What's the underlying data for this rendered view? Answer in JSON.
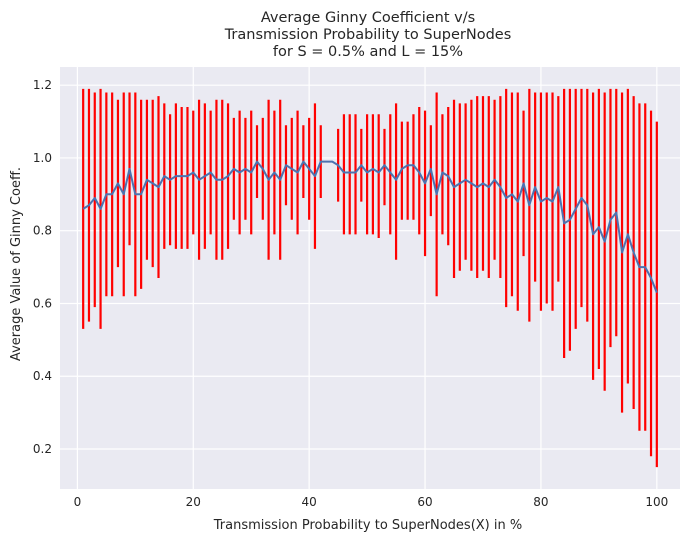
{
  "chart_data": {
    "type": "line",
    "title_lines": [
      "Average Ginny Coefficient v/s",
      "Transmission Probability to SuperNodes",
      "for S = 0.5% and L = 15%"
    ],
    "xlabel": "Transmission Probability to SuperNodes(X) in %",
    "ylabel": "Average Value of Ginny Coeff.",
    "xlim": [
      -3,
      104
    ],
    "ylim": [
      0.09,
      1.25
    ],
    "x_ticks": [
      0,
      20,
      40,
      60,
      80,
      100
    ],
    "x_tick_labels": [
      "0",
      "20",
      "40",
      "60",
      "80",
      "100"
    ],
    "y_ticks": [
      0.2,
      0.4,
      0.6,
      0.8,
      1.0,
      1.2
    ],
    "y_tick_labels": [
      "0.2",
      "0.4",
      "0.6",
      "0.8",
      "1.0",
      "1.2"
    ],
    "grid": true,
    "colors": {
      "background": "#EAEAF2",
      "grid": "#FFFFFF",
      "line": "#4C72B0",
      "error_bars": "#FF0000"
    },
    "x": [
      1,
      2,
      3,
      4,
      5,
      6,
      7,
      8,
      9,
      10,
      11,
      12,
      13,
      14,
      15,
      16,
      17,
      18,
      19,
      20,
      21,
      22,
      23,
      24,
      25,
      26,
      27,
      28,
      29,
      30,
      31,
      32,
      33,
      34,
      35,
      36,
      37,
      38,
      39,
      40,
      41,
      42,
      43,
      44,
      45,
      46,
      47,
      48,
      49,
      50,
      51,
      52,
      53,
      54,
      55,
      56,
      57,
      58,
      59,
      60,
      61,
      62,
      63,
      64,
      65,
      66,
      67,
      68,
      69,
      70,
      71,
      72,
      73,
      74,
      75,
      76,
      77,
      78,
      79,
      80,
      81,
      82,
      83,
      84,
      85,
      86,
      87,
      88,
      89,
      90,
      91,
      92,
      93,
      94,
      95,
      96,
      97,
      98,
      99,
      100
    ],
    "mean": [
      0.86,
      0.87,
      0.89,
      0.86,
      0.9,
      0.9,
      0.93,
      0.9,
      0.97,
      0.9,
      0.9,
      0.94,
      0.93,
      0.92,
      0.95,
      0.94,
      0.95,
      0.95,
      0.95,
      0.96,
      0.94,
      0.95,
      0.96,
      0.94,
      0.94,
      0.95,
      0.97,
      0.96,
      0.97,
      0.96,
      0.99,
      0.97,
      0.94,
      0.96,
      0.94,
      0.98,
      0.97,
      0.96,
      0.99,
      0.97,
      0.95,
      0.99,
      0.99,
      0.99,
      0.98,
      0.96,
      0.96,
      0.96,
      0.98,
      0.96,
      0.97,
      0.96,
      0.98,
      0.96,
      0.94,
      0.97,
      0.98,
      0.98,
      0.96,
      0.93,
      0.97,
      0.9,
      0.96,
      0.95,
      0.92,
      0.93,
      0.94,
      0.93,
      0.92,
      0.93,
      0.92,
      0.94,
      0.92,
      0.89,
      0.9,
      0.88,
      0.93,
      0.87,
      0.92,
      0.88,
      0.89,
      0.88,
      0.92,
      0.82,
      0.83,
      0.86,
      0.89,
      0.87,
      0.79,
      0.81,
      0.77,
      0.83,
      0.85,
      0.74,
      0.79,
      0.74,
      0.7,
      0.7,
      0.67,
      0.63
    ],
    "lower": [
      0.53,
      0.55,
      0.59,
      0.53,
      0.62,
      0.62,
      0.7,
      0.62,
      0.76,
      0.62,
      0.64,
      0.72,
      0.7,
      0.67,
      0.75,
      0.76,
      0.75,
      0.75,
      0.75,
      0.79,
      0.72,
      0.75,
      0.79,
      0.72,
      0.72,
      0.75,
      0.83,
      0.79,
      0.83,
      0.79,
      0.89,
      0.83,
      0.72,
      0.79,
      0.72,
      0.87,
      0.83,
      0.79,
      0.89,
      0.83,
      0.75,
      0.89,
      0.89,
      0.89,
      0.88,
      0.79,
      0.79,
      0.79,
      0.88,
      0.79,
      0.79,
      0.78,
      0.87,
      0.79,
      0.72,
      0.83,
      0.83,
      0.83,
      0.79,
      0.73,
      0.84,
      0.62,
      0.79,
      0.76,
      0.67,
      0.69,
      0.72,
      0.69,
      0.67,
      0.69,
      0.67,
      0.72,
      0.67,
      0.59,
      0.62,
      0.58,
      0.73,
      0.55,
      0.66,
      0.58,
      0.6,
      0.58,
      0.66,
      0.45,
      0.47,
      0.53,
      0.59,
      0.55,
      0.39,
      0.42,
      0.36,
      0.48,
      0.51,
      0.3,
      0.38,
      0.31,
      0.25,
      0.25,
      0.18,
      0.15
    ],
    "upper": [
      1.19,
      1.19,
      1.18,
      1.19,
      1.18,
      1.18,
      1.16,
      1.18,
      1.18,
      1.18,
      1.16,
      1.16,
      1.16,
      1.17,
      1.15,
      1.12,
      1.15,
      1.14,
      1.14,
      1.13,
      1.16,
      1.15,
      1.13,
      1.16,
      1.16,
      1.15,
      1.11,
      1.13,
      1.11,
      1.13,
      1.09,
      1.11,
      1.16,
      1.13,
      1.16,
      1.09,
      1.11,
      1.13,
      1.09,
      1.11,
      1.15,
      1.09,
      1.09,
      1.09,
      1.08,
      1.12,
      1.12,
      1.12,
      1.08,
      1.12,
      1.12,
      1.12,
      1.08,
      1.12,
      1.15,
      1.1,
      1.1,
      1.12,
      1.14,
      1.13,
      1.09,
      1.18,
      1.12,
      1.14,
      1.16,
      1.15,
      1.15,
      1.16,
      1.17,
      1.17,
      1.17,
      1.16,
      1.17,
      1.19,
      1.18,
      1.18,
      1.13,
      1.19,
      1.18,
      1.18,
      1.18,
      1.18,
      1.17,
      1.19,
      1.19,
      1.19,
      1.19,
      1.19,
      1.18,
      1.19,
      1.18,
      1.19,
      1.19,
      1.18,
      1.19,
      1.17,
      1.15,
      1.15,
      1.13,
      1.1
    ],
    "gap_x": [
      43,
      44
    ]
  }
}
